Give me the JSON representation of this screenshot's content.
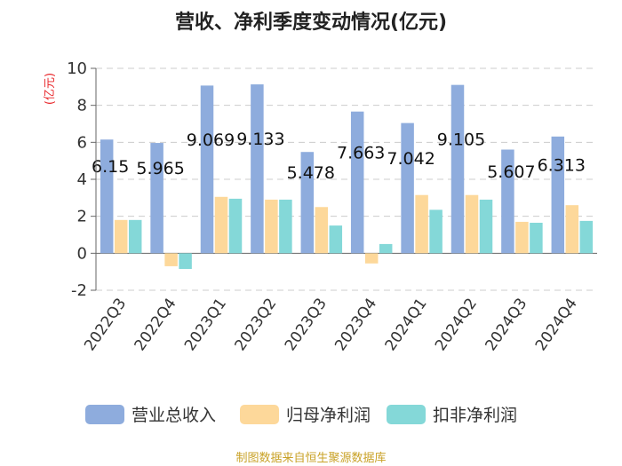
{
  "chart_data": {
    "type": "bar",
    "title": "营收、净利季度变动情况(亿元)",
    "ylabel": "(亿元)",
    "xlabel": "",
    "ylim": [
      -2,
      10
    ],
    "yticks": [
      -2,
      0,
      2,
      4,
      6,
      8,
      10
    ],
    "grid": true,
    "legend_position": "bottom",
    "categories": [
      "2022Q3",
      "2022Q4",
      "2023Q1",
      "2023Q2",
      "2023Q3",
      "2023Q4",
      "2024Q1",
      "2024Q2",
      "2024Q3",
      "2024Q4"
    ],
    "series": [
      {
        "name": "营业总收入",
        "color": "#8eacdd",
        "values": [
          6.15,
          5.965,
          9.069,
          9.133,
          5.478,
          7.663,
          7.042,
          9.105,
          5.607,
          6.313
        ]
      },
      {
        "name": "归母净利润",
        "color": "#fdd89a",
        "values": [
          1.8,
          -0.7,
          3.05,
          2.9,
          2.5,
          -0.55,
          3.15,
          3.15,
          1.7,
          2.6
        ]
      },
      {
        "name": "扣非净利润",
        "color": "#84d8d8",
        "values": [
          1.8,
          -0.85,
          2.95,
          2.9,
          1.5,
          0.5,
          2.35,
          2.9,
          1.65,
          1.75
        ]
      }
    ],
    "data_labels": [
      "6.15",
      "5.965",
      "9.069",
      "9.133",
      "5.478",
      "7.663",
      "7.042",
      "9.105",
      "5.607",
      "6.313"
    ]
  },
  "source": "制图数据来自恒生聚源数据库"
}
